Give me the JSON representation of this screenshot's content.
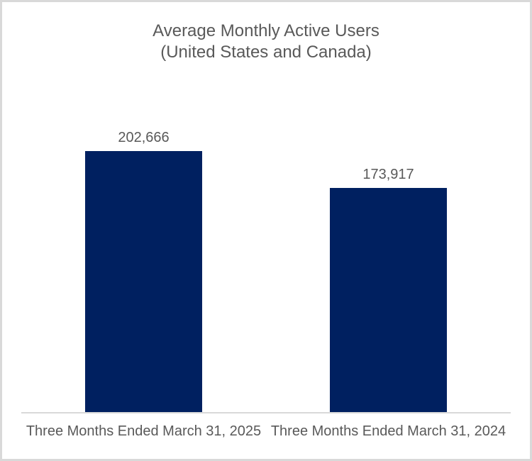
{
  "title": {
    "line1": "Average Monthly Active Users",
    "line2": "(United States and Canada)"
  },
  "colors": {
    "bar": "#002060",
    "text": "#595959",
    "axis_line": "#d9d9d9",
    "frame_border": "#d9d9d9",
    "background": "#ffffff"
  },
  "chart_data": {
    "type": "bar",
    "title": "Average Monthly Active Users (United States and Canada)",
    "categories": [
      "Three Months Ended March 31, 2025",
      "Three Months Ended March 31, 2024"
    ],
    "values": [
      202666,
      173917
    ],
    "value_labels": [
      "202,666",
      "173,917"
    ],
    "xlabel": "",
    "ylabel": "",
    "ylim": [
      0,
      202666
    ],
    "grid": false,
    "legend": false,
    "y_axis_visible": false,
    "bar_color": "#002060"
  }
}
